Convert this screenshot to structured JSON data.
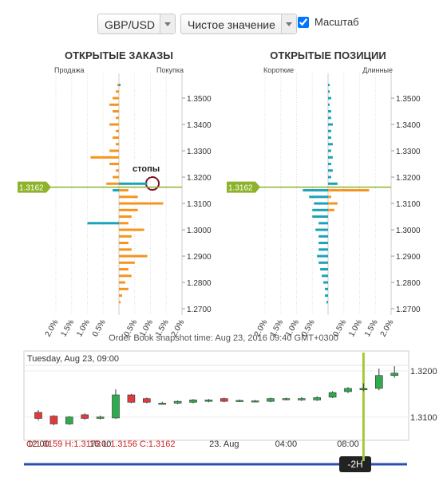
{
  "controls": {
    "pair": "GBP/USD",
    "mode": "Чистое значение",
    "scale_label": "Масштаб",
    "scale_checked": true
  },
  "chart_data": [
    {
      "type": "hbar",
      "title": "ОТКРЫТЫЕ ЗАКАЗЫ",
      "left_label": "Продажа",
      "right_label": "Покупка",
      "levels": [
        1.27,
        1.2725,
        1.275,
        1.2775,
        1.28,
        1.2825,
        1.285,
        1.2875,
        1.29,
        1.2925,
        1.295,
        1.2975,
        1.3,
        1.3025,
        1.305,
        1.3075,
        1.31,
        1.3125,
        1.315,
        1.3175,
        1.32,
        1.3225,
        1.325,
        1.3275,
        1.33,
        1.3325,
        1.335,
        1.3375,
        1.34,
        1.3425,
        1.345,
        1.3475,
        1.35,
        1.3525,
        1.355
      ],
      "series": [
        {
          "color": "#f7941d",
          "values": [
            null,
            0.05,
            0.1,
            0.3,
            0.2,
            0.4,
            0.3,
            0.5,
            0.9,
            0.4,
            0.3,
            0.4,
            0.8,
            0.3,
            0.4,
            0.6,
            1.4,
            0.6,
            0.3,
            -0.4,
            -0.2,
            -0.1,
            -0.3,
            -0.9,
            -0.3,
            -0.1,
            -0.2,
            -0.1,
            -0.3,
            -0.1,
            -0.2,
            -0.3,
            -0.2,
            -0.1,
            -0.05
          ]
        },
        {
          "color": "#1aa3b8",
          "values": [
            null,
            null,
            null,
            null,
            null,
            null,
            null,
            null,
            null,
            null,
            null,
            null,
            null,
            -1.0,
            null,
            null,
            null,
            null,
            -0.2,
            0.9,
            null,
            null,
            null,
            null,
            null,
            null,
            null,
            null,
            null,
            null,
            null,
            null,
            null,
            null,
            0.05
          ]
        }
      ],
      "xlim": [
        -2,
        2
      ],
      "xticks": [
        {
          "value": -2,
          "label": "2.0%"
        },
        {
          "value": -1.5,
          "label": "1.5%"
        },
        {
          "value": -1,
          "label": "1.0%"
        },
        {
          "value": -0.5,
          "label": "0.5%"
        },
        {
          "value": 0.5,
          "label": "0.5%"
        },
        {
          "value": 1,
          "label": "1.0%"
        },
        {
          "value": 1.5,
          "label": "1.5%"
        },
        {
          "value": 2,
          "label": "2.0%"
        }
      ],
      "ylim": [
        1.2676,
        1.3594
      ],
      "yticks": [
        {
          "value": 1.27,
          "label": "1.2700"
        },
        {
          "value": 1.28,
          "label": "1.2800"
        },
        {
          "value": 1.29,
          "label": "1.2900"
        },
        {
          "value": 1.3,
          "label": "1.3000"
        },
        {
          "value": 1.31,
          "label": "1.3100"
        },
        {
          "value": 1.32,
          "label": "1.3200"
        },
        {
          "value": 1.33,
          "label": "1.3300"
        },
        {
          "value": 1.34,
          "label": "1.3400"
        },
        {
          "value": 1.35,
          "label": "1.3500"
        }
      ],
      "current_price": 1.3162,
      "annotation": "стопы"
    },
    {
      "type": "hbar",
      "title": "ОТКРЫТЫЕ ПОЗИЦИИ",
      "left_label": "Короткие",
      "right_label": "Длинные",
      "levels": [
        1.27,
        1.2725,
        1.275,
        1.2775,
        1.28,
        1.2825,
        1.285,
        1.2875,
        1.29,
        1.2925,
        1.295,
        1.2975,
        1.3,
        1.3025,
        1.305,
        1.3075,
        1.31,
        1.3125,
        1.315,
        1.3175,
        1.32,
        1.3225,
        1.325,
        1.3275,
        1.33,
        1.3325,
        1.335,
        1.3375,
        1.34,
        1.3425,
        1.345,
        1.3475,
        1.35,
        1.3525,
        1.355
      ],
      "series": [
        {
          "color": "#1aa3b8",
          "values": [
            null,
            -0.05,
            -0.1,
            -0.1,
            -0.15,
            -0.2,
            -0.25,
            -0.3,
            -0.35,
            -0.3,
            -0.3,
            -0.3,
            -0.4,
            -0.3,
            -0.5,
            -0.5,
            -0.45,
            -0.6,
            -0.8,
            0.3,
            0.1,
            0.15,
            0.1,
            0.15,
            0.1,
            0.15,
            0.1,
            0.1,
            0.15,
            0.1,
            0.1,
            0.05,
            0.1,
            0.05,
            0.05
          ]
        },
        {
          "color": "#f7941d",
          "values": [
            null,
            null,
            null,
            null,
            null,
            null,
            null,
            null,
            null,
            null,
            null,
            null,
            null,
            null,
            null,
            0.2,
            0.3,
            0.1,
            1.3,
            null,
            null,
            null,
            null,
            null,
            null,
            null,
            null,
            null,
            null,
            null,
            null,
            null,
            null,
            null,
            null
          ]
        }
      ],
      "xlim": [
        -2,
        2
      ],
      "xticks": [
        {
          "value": -2,
          "label": "2.0%"
        },
        {
          "value": -1.5,
          "label": "1.5%"
        },
        {
          "value": -1,
          "label": "1.0%"
        },
        {
          "value": -0.5,
          "label": "0.5%"
        },
        {
          "value": 0.5,
          "label": "0.5%"
        },
        {
          "value": 1,
          "label": "1.0%"
        },
        {
          "value": 1.5,
          "label": "1.5%"
        },
        {
          "value": 2,
          "label": "2.0%"
        }
      ],
      "ylim": [
        1.2676,
        1.3594
      ],
      "yticks": [
        {
          "value": 1.27,
          "label": "1.2700"
        },
        {
          "value": 1.28,
          "label": "1.2800"
        },
        {
          "value": 1.29,
          "label": "1.2900"
        },
        {
          "value": 1.3,
          "label": "1.3000"
        },
        {
          "value": 1.31,
          "label": "1.3100"
        },
        {
          "value": 1.32,
          "label": "1.3200"
        },
        {
          "value": 1.33,
          "label": "1.3300"
        },
        {
          "value": 1.34,
          "label": "1.3400"
        },
        {
          "value": 1.35,
          "label": "1.3500"
        }
      ],
      "current_price": 1.3162
    },
    {
      "type": "candlestick",
      "date_label": "Tuesday, Aug 23, 09:00",
      "categories": [
        "12:00",
        null,
        null,
        null,
        "16:00",
        null,
        null,
        null,
        null,
        null,
        null,
        null,
        "23. Aug",
        null,
        null,
        null,
        "04:00",
        null,
        null,
        null,
        "08:00",
        null,
        null,
        null
      ],
      "open": [
        1.311,
        1.3102,
        1.3085,
        1.3105,
        1.3097,
        1.3098,
        1.3148,
        1.314,
        1.313,
        1.313,
        1.3132,
        1.3134,
        1.314,
        1.3135,
        1.3135,
        1.3134,
        1.3138,
        1.3137,
        1.3137,
        1.3143,
        1.3155,
        1.3159,
        1.3162,
        1.319
      ],
      "high": [
        1.3115,
        1.3104,
        1.3102,
        1.3108,
        1.3103,
        1.316,
        1.315,
        1.3142,
        1.3133,
        1.3136,
        1.3139,
        1.3139,
        1.3142,
        1.3138,
        1.3137,
        1.3142,
        1.3142,
        1.3143,
        1.3145,
        1.3156,
        1.3165,
        1.3173,
        1.3205,
        1.321
      ],
      "low": [
        1.3093,
        1.3082,
        1.3083,
        1.3094,
        1.3095,
        1.3096,
        1.313,
        1.313,
        1.3127,
        1.3128,
        1.313,
        1.3132,
        1.3132,
        1.3133,
        1.3132,
        1.3132,
        1.3136,
        1.3135,
        1.3135,
        1.3141,
        1.3152,
        1.3156,
        1.3158,
        1.3185
      ],
      "close": [
        1.3097,
        1.3085,
        1.31,
        1.3097,
        1.31,
        1.3148,
        1.3132,
        1.3132,
        1.313,
        1.3134,
        1.3137,
        1.3137,
        1.3134,
        1.3136,
        1.3135,
        1.314,
        1.314,
        1.314,
        1.3142,
        1.3153,
        1.3162,
        1.3162,
        1.319,
        1.3195
      ],
      "up_color": "#2eaa4f",
      "down_color": "#e03a3a",
      "ylim": [
        1.3053,
        1.3212
      ],
      "yticks": [
        {
          "value": 1.31,
          "label": "1.3100"
        },
        {
          "value": 1.32,
          "label": "1.3200"
        }
      ],
      "highlight_index": 21,
      "ohlc_label": "O:1.3159 H:1.3173 L:1.3156 C:1.3162"
    }
  ],
  "snapshot_text": "Order Book snapshot time: Aug 23, 2016 09:40 GMT+0300",
  "range_button": "-2H"
}
